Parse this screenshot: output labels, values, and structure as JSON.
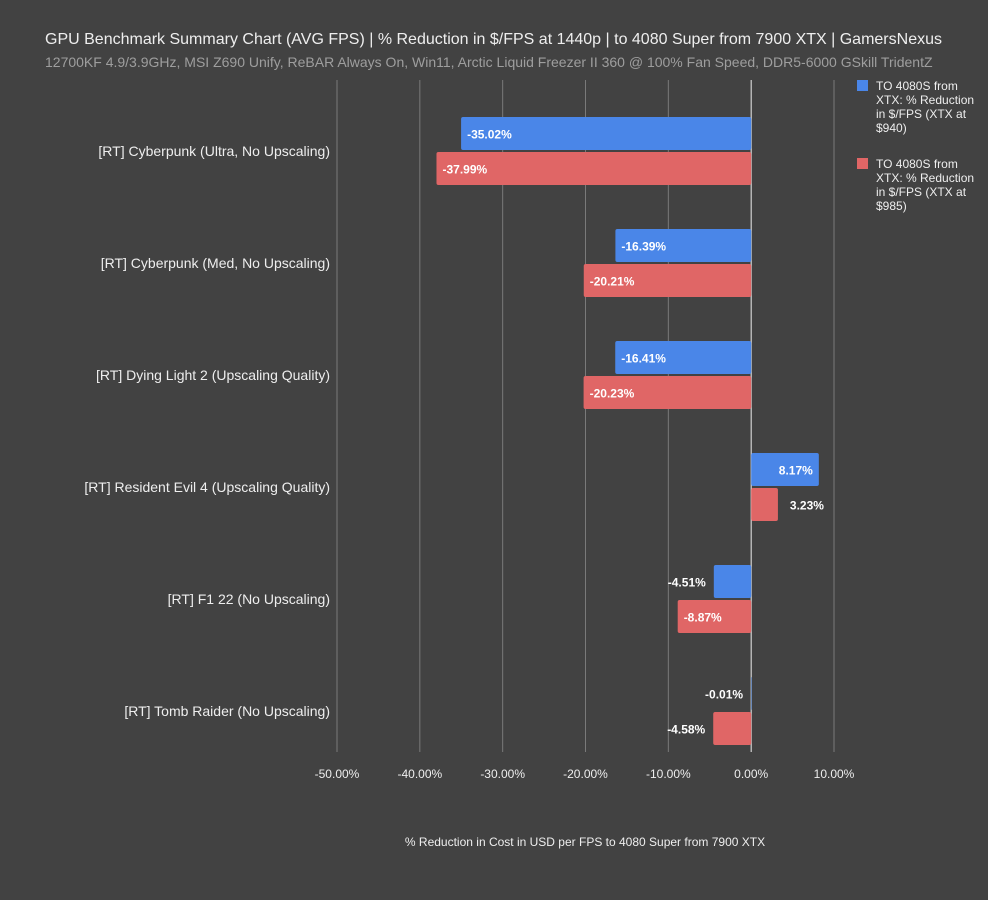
{
  "chart_data": {
    "type": "bar",
    "orientation": "horizontal",
    "title": "GPU Benchmark Summary Chart (AVG FPS) | % Reduction in $/FPS at 1440p | to 4080 Super from 7900 XTX | GamersNexus",
    "subtitle": "12700KF 4.9/3.9GHz, MSI Z690 Unify, ReBAR Always On, Win11, Arctic Liquid Freezer II 360 @ 100% Fan Speed, DDR5-6000 GSkill TridentZ",
    "xlabel": "% Reduction in Cost in USD per FPS to 4080 Super from 7900 XTX",
    "ylabel": "",
    "xlim": [
      -50,
      10
    ],
    "xticks": [
      "-50.00%",
      "-40.00%",
      "-30.00%",
      "-20.00%",
      "-10.00%",
      "0.00%",
      "10.00%"
    ],
    "grid": true,
    "legend_position": "right",
    "categories": [
      "[RT] Cyberpunk (Ultra, No Upscaling)",
      "[RT] Cyberpunk (Med, No Upscaling)",
      "[RT] Dying Light 2 (Upscaling Quality)",
      "[RT] Resident Evil 4 (Upscaling Quality)",
      "[RT] F1 22 (No Upscaling)",
      "[RT] Tomb Raider (No Upscaling)"
    ],
    "series": [
      {
        "name": "TO 4080S from XTX: % Reduction in $/FPS (XTX at $940)",
        "color": "#4a86e8",
        "values": [
          -35.02,
          -16.39,
          -16.41,
          8.17,
          -4.51,
          -0.01
        ],
        "labels": [
          "-35.02%",
          "-16.39%",
          "-16.41%",
          "8.17%",
          "-4.51%",
          "-0.01%"
        ]
      },
      {
        "name": "TO 4080S from XTX: % Reduction in $/FPS (XTX at $985)",
        "color": "#e06666",
        "values": [
          -37.99,
          -20.21,
          -20.23,
          3.23,
          -8.87,
          -4.58
        ],
        "labels": [
          "-37.99%",
          "-20.21%",
          "-20.23%",
          "3.23%",
          "-8.87%",
          "-4.58%"
        ]
      }
    ]
  }
}
